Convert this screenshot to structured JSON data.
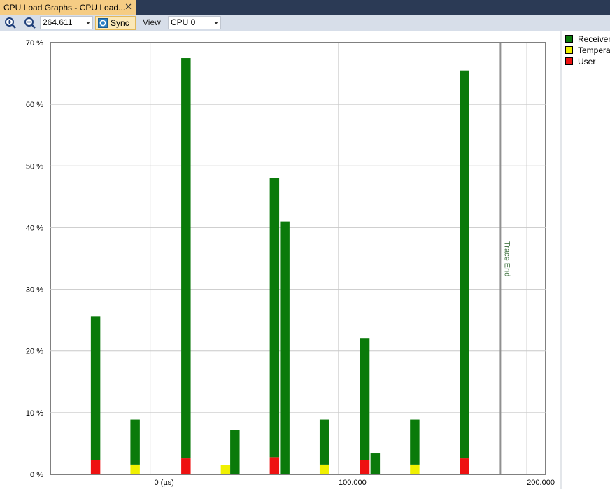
{
  "window": {
    "tab_title": "CPU Load Graphs - CPU Load...",
    "close_glyph": "✕"
  },
  "toolbar": {
    "zoom_in_icon": "zoom-in-icon",
    "zoom_out_icon": "zoom-out-icon",
    "zoom_value": "264.611",
    "sync_label": "Sync",
    "view_label": "View",
    "cpu_selected": "CPU 0"
  },
  "legend": {
    "items": [
      {
        "label": "Receiver",
        "color": "#0a7a0a"
      },
      {
        "label": "Temperat",
        "color": "#f0f000"
      },
      {
        "label": "User",
        "color": "#ee1111"
      }
    ]
  },
  "chart_data": {
    "type": "bar",
    "stacked": true,
    "y_tick_labels": [
      "0 %",
      "10 %",
      "20 %",
      "30 %",
      "40 %",
      "50 %",
      "60 %",
      "70 %"
    ],
    "x_tick_labels": [
      "0 (µs)",
      "100.000",
      "200.000"
    ],
    "ylim": [
      0,
      70
    ],
    "xlim": [
      -53000,
      210000
    ],
    "x_grid": [
      0,
      100000,
      200000
    ],
    "grid": true,
    "legend_position": "right",
    "trace_end": {
      "label": "Trace End",
      "x": 186000
    },
    "bar_width": 5000,
    "colors": {
      "Receiver": "#0a7a0a",
      "Temperat": "#f0f000",
      "User": "#ee1111"
    },
    "bars": [
      {
        "x": -29000,
        "segments": [
          {
            "series": "User",
            "value": 2.3
          },
          {
            "series": "Receiver",
            "value": 23.3
          }
        ]
      },
      {
        "x": -8000,
        "segments": [
          {
            "series": "Temperat",
            "value": 1.6
          },
          {
            "series": "Receiver",
            "value": 7.3
          }
        ]
      },
      {
        "x": 19000,
        "segments": [
          {
            "series": "User",
            "value": 2.6
          },
          {
            "series": "Receiver",
            "value": 64.9
          }
        ]
      },
      {
        "x": 40000,
        "segments": [
          {
            "series": "Temperat",
            "value": 1.5
          }
        ]
      },
      {
        "x": 45000,
        "segments": [
          {
            "series": "Receiver",
            "value": 7.2
          }
        ]
      },
      {
        "x": 66000,
        "segments": [
          {
            "series": "User",
            "value": 2.8
          },
          {
            "series": "Receiver",
            "value": 45.2
          }
        ]
      },
      {
        "x": 71500,
        "segments": [
          {
            "series": "Receiver",
            "value": 41.0
          }
        ]
      },
      {
        "x": 92500,
        "segments": [
          {
            "series": "Temperat",
            "value": 1.6
          },
          {
            "series": "Receiver",
            "value": 7.3
          }
        ]
      },
      {
        "x": 114000,
        "segments": [
          {
            "series": "User",
            "value": 2.3
          },
          {
            "series": "Receiver",
            "value": 19.8
          }
        ]
      },
      {
        "x": 119500,
        "segments": [
          {
            "series": "Receiver",
            "value": 3.4
          }
        ]
      },
      {
        "x": 140500,
        "segments": [
          {
            "series": "Temperat",
            "value": 1.6
          },
          {
            "series": "Receiver",
            "value": 7.3
          }
        ]
      },
      {
        "x": 167000,
        "segments": [
          {
            "series": "User",
            "value": 2.6
          },
          {
            "series": "Receiver",
            "value": 62.9
          }
        ]
      }
    ]
  }
}
